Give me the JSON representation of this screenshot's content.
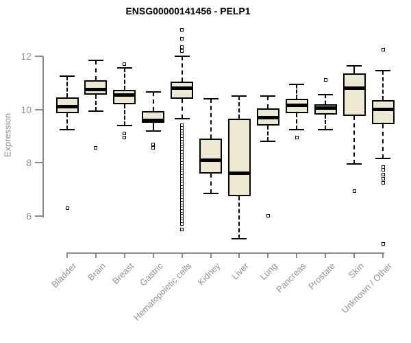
{
  "colors": {
    "background": "#FFFFFF",
    "title_color": "#000000",
    "label_gray": "#919191",
    "axis_gray": "#8A8A8A",
    "box_fill": "#EDE8D0",
    "box_stroke": "#000000"
  },
  "chart_data": {
    "type": "boxplot",
    "title": "ENSG00000141456 - PELP1",
    "xlabel": "",
    "ylabel": "Expression",
    "yticks": [
      6,
      8,
      10,
      12
    ],
    "ylim": [
      4.7,
      13.2
    ],
    "grid": false,
    "legend": "none",
    "categories": [
      "Bladder",
      "Brain",
      "Breast",
      "Gastric",
      "Hematopoietic cells",
      "Kidney",
      "Liver",
      "Lung",
      "Pancreas",
      "Prostate",
      "Skin",
      "Unknown / Other"
    ],
    "boxes": [
      {
        "category": "Bladder",
        "whisker_low": 9.25,
        "q1": 9.85,
        "median": 10.1,
        "q3": 10.45,
        "whisker_high": 11.25,
        "outliers": [
          6.3
        ]
      },
      {
        "category": "Brain",
        "whisker_low": 9.95,
        "q1": 10.55,
        "median": 10.75,
        "q3": 11.1,
        "whisker_high": 11.85,
        "outliers": [
          8.55
        ]
      },
      {
        "category": "Breast",
        "whisker_low": 9.4,
        "q1": 10.2,
        "median": 10.55,
        "q3": 10.75,
        "whisker_high": 11.55,
        "outliers": [
          11.7,
          9.1,
          8.95
        ]
      },
      {
        "category": "Gastric",
        "whisker_low": 9.2,
        "q1": 9.5,
        "median": 9.6,
        "q3": 9.95,
        "whisker_high": 10.65,
        "outliers": [
          8.7,
          8.55
        ]
      },
      {
        "category": "Hematopoietic cells",
        "whisker_low": 9.65,
        "q1": 10.4,
        "median": 10.8,
        "q3": 11.05,
        "whisker_high": 12.0,
        "outliers": [
          13.0,
          12.65,
          12.35,
          12.25,
          12.2,
          9.4,
          9.3,
          9.2,
          9.1,
          9.0,
          8.9,
          8.8,
          8.7,
          8.6,
          8.5,
          8.4,
          8.3,
          8.2,
          8.1,
          8.0,
          7.9,
          7.8,
          7.7,
          7.6,
          7.5,
          7.4,
          7.3,
          7.2,
          7.1,
          7.0,
          6.9,
          6.8,
          6.7,
          6.6,
          6.5,
          6.4,
          6.3,
          6.2,
          6.1,
          6.0,
          5.9,
          5.8,
          5.7,
          5.5
        ]
      },
      {
        "category": "Kidney",
        "whisker_low": 6.85,
        "q1": 7.6,
        "median": 8.1,
        "q3": 8.9,
        "whisker_high": 10.4,
        "outliers": []
      },
      {
        "category": "Liver",
        "whisker_low": 5.15,
        "q1": 6.75,
        "median": 7.6,
        "q3": 9.65,
        "whisker_high": 10.5,
        "outliers": []
      },
      {
        "category": "Lung",
        "whisker_low": 8.8,
        "q1": 9.4,
        "median": 9.7,
        "q3": 10.05,
        "whisker_high": 10.5,
        "outliers": [
          6.0
        ]
      },
      {
        "category": "Pancreas",
        "whisker_low": 9.25,
        "q1": 9.85,
        "median": 10.15,
        "q3": 10.4,
        "whisker_high": 10.95,
        "outliers": [
          8.95
        ]
      },
      {
        "category": "Prostate",
        "whisker_low": 9.25,
        "q1": 9.8,
        "median": 10.05,
        "q3": 10.2,
        "whisker_high": 10.55,
        "outliers": [
          11.1
        ]
      },
      {
        "category": "Skin",
        "whisker_low": 7.95,
        "q1": 9.75,
        "median": 10.8,
        "q3": 11.35,
        "whisker_high": 11.65,
        "outliers": [
          6.95
        ]
      },
      {
        "category": "Unknown / Other",
        "whisker_low": 8.15,
        "q1": 9.45,
        "median": 10.0,
        "q3": 10.35,
        "whisker_high": 11.45,
        "outliers": [
          12.25,
          7.85,
          7.75,
          7.55,
          7.4,
          7.25,
          4.95
        ]
      }
    ]
  }
}
